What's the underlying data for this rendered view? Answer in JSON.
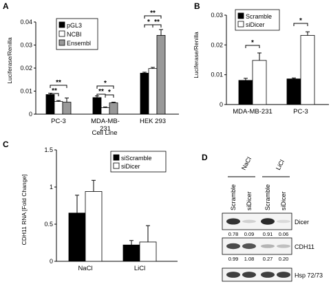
{
  "chart_data": [
    {
      "panel": "A",
      "type": "bar",
      "ylabel": "Luciferase/Renilla",
      "xlabel": "Cell Line",
      "ylim": [
        0,
        0.04
      ],
      "yticks": [
        0,
        0.01,
        0.02,
        0.03,
        0.04
      ],
      "ytick_labels": [
        "0",
        "0.01",
        "0.02",
        "0.03",
        "0.04"
      ],
      "categories": [
        "PC-3",
        "MDA-MB-231",
        "HEK 293"
      ],
      "series": [
        {
          "name": "pGL3",
          "values": [
            0.0085,
            0.0072,
            0.0178
          ],
          "errors": [
            0.0006,
            0.0007,
            0.0004
          ],
          "color": "#000000"
        },
        {
          "name": "NCBI",
          "values": [
            0.0055,
            0.0028,
            0.0198
          ],
          "errors": [
            0.0004,
            0.0003,
            0.0005
          ],
          "color": "#ffffff"
        },
        {
          "name": "Ensembl",
          "values": [
            0.0052,
            0.0049,
            0.0342
          ],
          "errors": [
            0.0018,
            0.0003,
            0.0025
          ],
          "color": "#999999"
        }
      ],
      "significance": [
        "**",
        "**",
        "**",
        "*",
        "*",
        "**",
        "*",
        "**"
      ]
    },
    {
      "panel": "B",
      "type": "bar",
      "ylabel": "Luciferase/Renilla",
      "ylim": [
        0,
        0.03
      ],
      "yticks": [
        0,
        0.01,
        0.02,
        0.03
      ],
      "ytick_labels": [
        "0",
        "0.01",
        "0.02",
        "0.03"
      ],
      "categories": [
        "MDA-MB-231",
        "PC-3"
      ],
      "series": [
        {
          "name": "Scramble",
          "values": [
            0.0081,
            0.0086
          ],
          "errors": [
            0.0007,
            0.0003
          ],
          "color": "#000000"
        },
        {
          "name": "siDicer",
          "values": [
            0.0148,
            0.0232
          ],
          "errors": [
            0.0025,
            0.0012
          ],
          "color": "#ffffff"
        }
      ],
      "significance": [
        "*",
        "*"
      ]
    },
    {
      "panel": "C",
      "type": "bar",
      "ylabel": "CDH11 RNA [Fold Change]",
      "ylim": [
        0,
        1.5
      ],
      "yticks": [
        0,
        0.5,
        1,
        1.5
      ],
      "ytick_labels": [
        "0",
        "0.5",
        "1",
        "1.5"
      ],
      "categories": [
        "NaCl",
        "LiCl"
      ],
      "series": [
        {
          "name": "siScramble",
          "values": [
            0.65,
            0.22
          ],
          "errors": [
            0.24,
            0.06
          ],
          "color": "#000000"
        },
        {
          "name": "siDicer",
          "values": [
            0.94,
            0.26
          ],
          "errors": [
            0.15,
            0.22
          ],
          "color": "#ffffff"
        }
      ]
    }
  ],
  "panel_d": {
    "panel": "D",
    "group_labels": [
      "NaCl",
      "LiCl"
    ],
    "lane_labels": [
      "Scramble",
      "siDicer",
      "Scramble",
      "siDicer"
    ],
    "blots": [
      {
        "label": "Dicer",
        "quant": [
          "0.78",
          "0.09",
          "0.91",
          "0.06"
        ],
        "intensity": [
          0.85,
          0.12,
          0.9,
          0.08
        ]
      },
      {
        "label": "CDH11",
        "quant": [
          "0.99",
          "1.08",
          "0.27",
          "0.20"
        ],
        "intensity": [
          0.75,
          0.7,
          0.25,
          0.2
        ]
      },
      {
        "label": "Hsp 72/73",
        "quant": [],
        "intensity": [
          0.8,
          0.8,
          0.8,
          0.8
        ]
      }
    ]
  }
}
